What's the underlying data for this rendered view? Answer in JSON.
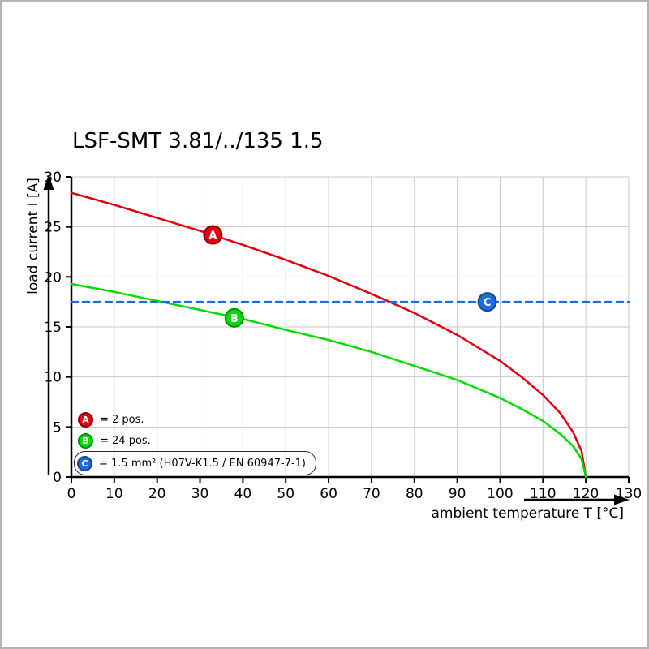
{
  "chart_data": {
    "type": "line",
    "title": "LSF-SMT 3.81/../135 1.5",
    "xlabel": "ambient temperature T [°C]",
    "ylabel": "load current I [A]",
    "xlim": [
      0,
      130
    ],
    "ylim": [
      0,
      30
    ],
    "xticks": [
      0,
      10,
      20,
      30,
      40,
      50,
      60,
      70,
      80,
      90,
      100,
      110,
      120,
      130
    ],
    "yticks": [
      0,
      5,
      10,
      15,
      20,
      25,
      30
    ],
    "grid": true,
    "legend_position": "lower-left",
    "colors": {
      "grid": "#c8c8c8",
      "axis": "#000000",
      "background": "#ffffff",
      "frame": "#b4b4b4"
    },
    "series": [
      {
        "name": "A",
        "legend": "= 2 pos.",
        "color": "#e3000f",
        "border": "#8f0009",
        "dash": false,
        "x": [
          0,
          10,
          20,
          30,
          40,
          50,
          60,
          70,
          80,
          90,
          100,
          105,
          110,
          114,
          117,
          119,
          120
        ],
        "y": [
          28.4,
          27.2,
          25.9,
          24.6,
          23.2,
          21.7,
          20.1,
          18.3,
          16.4,
          14.2,
          11.6,
          10.0,
          8.2,
          6.4,
          4.5,
          2.6,
          0
        ],
        "marker": {
          "x": 33,
          "y": 24.2
        }
      },
      {
        "name": "B",
        "legend": "= 24 pos.",
        "color": "#00dc00",
        "border": "#008f00",
        "dash": false,
        "x": [
          0,
          10,
          20,
          30,
          40,
          50,
          60,
          70,
          80,
          90,
          100,
          105,
          110,
          114,
          117,
          119,
          120
        ],
        "y": [
          19.3,
          18.5,
          17.6,
          16.7,
          15.8,
          14.7,
          13.7,
          12.5,
          11.1,
          9.7,
          7.9,
          6.8,
          5.6,
          4.3,
          3.1,
          1.8,
          0
        ],
        "marker": {
          "x": 38,
          "y": 15.9
        }
      },
      {
        "name": "C",
        "legend": "= 1.5 mm² (H07V-K1.5 / EN 60947-7-1)",
        "color": "#1f6bde",
        "border": "#14488f",
        "dash": true,
        "x": [
          0,
          130
        ],
        "y": [
          17.5,
          17.5
        ],
        "marker": {
          "x": 97,
          "y": 17.5
        }
      }
    ]
  }
}
